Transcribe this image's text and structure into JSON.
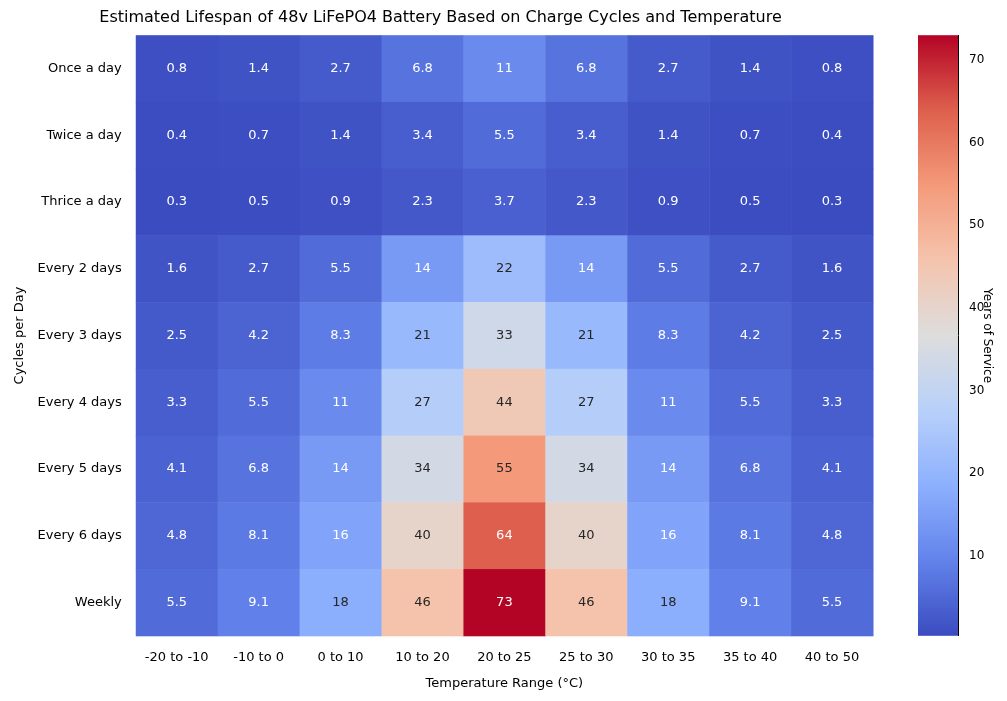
{
  "chart_data": {
    "type": "heatmap",
    "title": "Estimated Lifespan of 48v LiFePO4 Battery Based on Charge Cycles and Temperature",
    "x_label": "Temperature Range (°C)",
    "y_label": "Cycles per Day",
    "categories": [
      "-20 to -10",
      "-10 to 0",
      "0 to 10",
      "10 to 20",
      "20 to 25",
      "25 to 30",
      "30 to 35",
      "35 to 40",
      "40 to 50"
    ],
    "rows": [
      "Once a day",
      "Twice a day",
      "Thrice a day",
      "Every 2 days",
      "Every 3 days",
      "Every 4 days",
      "Every 5 days",
      "Every 6 days",
      "Weekly"
    ],
    "values": [
      [
        0.8,
        1.4,
        2.7,
        6.8,
        11,
        6.8,
        2.7,
        1.4,
        0.8
      ],
      [
        0.4,
        0.7,
        1.4,
        3.4,
        5.5,
        3.4,
        1.4,
        0.7,
        0.4
      ],
      [
        0.3,
        0.5,
        0.9,
        2.3,
        3.7,
        2.3,
        0.9,
        0.5,
        0.3
      ],
      [
        1.6,
        2.7,
        5.5,
        14,
        22,
        14,
        5.5,
        2.7,
        1.6
      ],
      [
        2.5,
        4.2,
        8.3,
        21,
        33,
        21,
        8.3,
        4.2,
        2.5
      ],
      [
        3.3,
        5.5,
        11,
        27,
        44,
        27,
        11,
        5.5,
        3.3
      ],
      [
        4.1,
        6.8,
        14,
        34,
        55,
        34,
        14,
        6.8,
        4.1
      ],
      [
        4.8,
        8.1,
        16,
        40,
        64,
        40,
        16,
        8.1,
        4.8
      ],
      [
        5.5,
        9.1,
        18,
        46,
        73,
        46,
        18,
        9.1,
        5.5
      ]
    ],
    "color": "coolwarm",
    "data_labels": true,
    "grid": false,
    "colorbar": {
      "label": "Years of Service",
      "range": [
        0.3,
        73
      ],
      "ticks": [
        10,
        20,
        30,
        40,
        50,
        60,
        70
      ]
    }
  }
}
